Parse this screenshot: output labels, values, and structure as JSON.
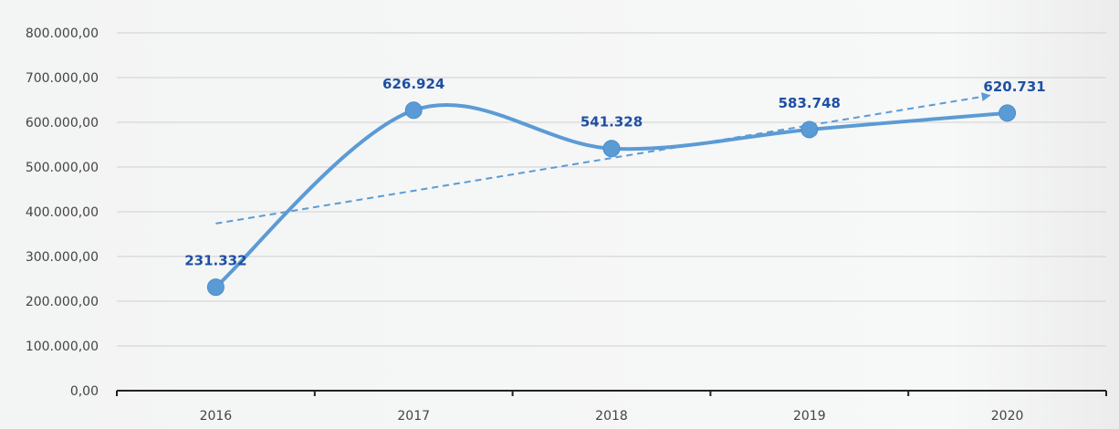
{
  "chart_data": {
    "type": "line",
    "title": "",
    "xlabel": "",
    "ylabel": "",
    "categories": [
      "2016",
      "2017",
      "2018",
      "2019",
      "2020"
    ],
    "series": [
      {
        "values": [
          231332,
          626924,
          541328,
          583748,
          620731
        ],
        "data_labels": [
          "231.332",
          "626.924",
          "541.328",
          "583.748",
          "620.731"
        ],
        "color": "#5b9bd5",
        "smoothed": true,
        "markers": true
      }
    ],
    "trendline": {
      "type": "linear",
      "style": "dashed",
      "color": "#5b9bd5",
      "arrow_at_end": true
    },
    "ylim": [
      0,
      800000
    ],
    "yticks": [
      0,
      100000,
      200000,
      300000,
      400000,
      500000,
      600000,
      700000,
      800000
    ],
    "ytick_labels": [
      "0,00",
      "100.000,00",
      "200.000,00",
      "300.000,00",
      "400.000,00",
      "500.000,00",
      "600.000,00",
      "700.000,00",
      "800.000,00"
    ],
    "grid": true,
    "legend": "none",
    "label_color": "#1f4fa3"
  }
}
